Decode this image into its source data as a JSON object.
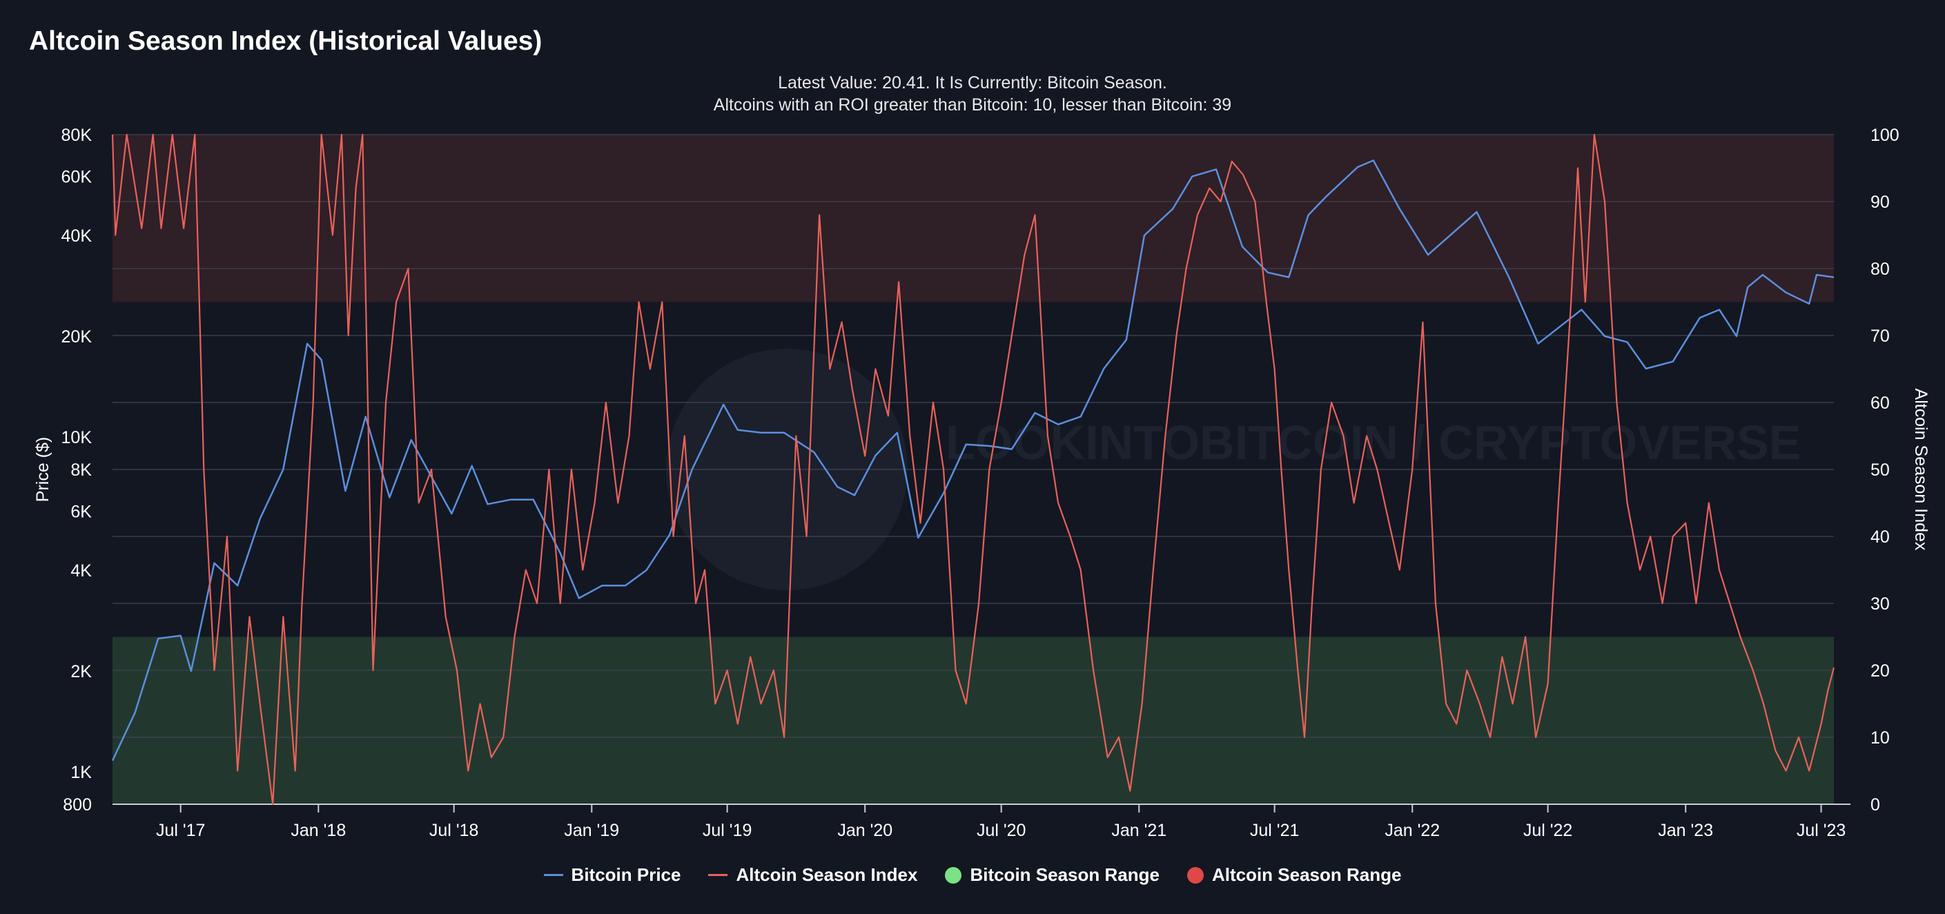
{
  "chart_data": {
    "type": "line",
    "title": "Altcoin Season Index (Historical Values)",
    "subtitle_line1": "Latest Value: 20.41. It Is Currently: Bitcoin Season.",
    "subtitle_line2": "Altcoins with an ROI greater than Bitcoin: 10, lesser than Bitcoin: 39",
    "watermark": "LOOKINTOBITCOIN / CRYPTOVERSE",
    "x_ticks": [
      {
        "label": "Jul '17",
        "date": "2017-07-01"
      },
      {
        "label": "Jan '18",
        "date": "2018-01-01"
      },
      {
        "label": "Jul '18",
        "date": "2018-07-01"
      },
      {
        "label": "Jan '19",
        "date": "2019-01-01"
      },
      {
        "label": "Jul '19",
        "date": "2019-07-01"
      },
      {
        "label": "Jan '20",
        "date": "2020-01-01"
      },
      {
        "label": "Jul '20",
        "date": "2020-07-01"
      },
      {
        "label": "Jan '21",
        "date": "2021-01-01"
      },
      {
        "label": "Jul '21",
        "date": "2021-07-01"
      },
      {
        "label": "Jan '22",
        "date": "2022-01-01"
      },
      {
        "label": "Jul '22",
        "date": "2022-07-01"
      },
      {
        "label": "Jan '23",
        "date": "2023-01-01"
      },
      {
        "label": "Jul '23",
        "date": "2023-07-01"
      }
    ],
    "x_range": [
      "2017-04-01",
      "2023-07-18"
    ],
    "y_left": {
      "label": "Price ($)",
      "scale": "log",
      "range": [
        800,
        80000
      ],
      "ticks": [
        {
          "label": "800",
          "value": 800
        },
        {
          "label": "1K",
          "value": 1000
        },
        {
          "label": "2K",
          "value": 2000
        },
        {
          "label": "4K",
          "value": 4000
        },
        {
          "label": "6K",
          "value": 6000
        },
        {
          "label": "8K",
          "value": 8000
        },
        {
          "label": "10K",
          "value": 10000
        },
        {
          "label": "20K",
          "value": 20000
        },
        {
          "label": "40K",
          "value": 40000
        },
        {
          "label": "60K",
          "value": 60000
        },
        {
          "label": "80K",
          "value": 80000
        }
      ]
    },
    "y_right": {
      "label": "Altcoin Season Index",
      "range": [
        0,
        100
      ],
      "ticks": [
        0,
        10,
        20,
        30,
        40,
        50,
        60,
        70,
        80,
        90,
        100
      ]
    },
    "bands": [
      {
        "name": "Bitcoin Season Range",
        "from": 0,
        "to": 25,
        "color": "#22382f"
      },
      {
        "name": "Altcoin Season Range",
        "from": 75,
        "to": 100,
        "color": "#2f1f27"
      }
    ],
    "series": [
      {
        "name": "Bitcoin Price",
        "color": "#5b8fdd",
        "axis": "left",
        "points": [
          [
            "2017-04-01",
            1080
          ],
          [
            "2017-05-01",
            1500
          ],
          [
            "2017-06-01",
            2500
          ],
          [
            "2017-07-01",
            2550
          ],
          [
            "2017-07-15",
            2000
          ],
          [
            "2017-08-15",
            4200
          ],
          [
            "2017-09-15",
            3600
          ],
          [
            "2017-10-15",
            5700
          ],
          [
            "2017-11-15",
            8000
          ],
          [
            "2017-12-17",
            19000
          ],
          [
            "2018-01-05",
            17000
          ],
          [
            "2018-02-06",
            6900
          ],
          [
            "2018-03-05",
            11500
          ],
          [
            "2018-04-06",
            6600
          ],
          [
            "2018-05-05",
            9800
          ],
          [
            "2018-06-28",
            5900
          ],
          [
            "2018-07-25",
            8200
          ],
          [
            "2018-08-15",
            6300
          ],
          [
            "2018-09-15",
            6500
          ],
          [
            "2018-10-15",
            6500
          ],
          [
            "2018-11-20",
            4500
          ],
          [
            "2018-12-15",
            3300
          ],
          [
            "2019-01-15",
            3600
          ],
          [
            "2019-02-15",
            3600
          ],
          [
            "2019-03-15",
            4000
          ],
          [
            "2019-04-15",
            5100
          ],
          [
            "2019-05-15",
            8000
          ],
          [
            "2019-06-26",
            12500
          ],
          [
            "2019-07-15",
            10500
          ],
          [
            "2019-08-15",
            10300
          ],
          [
            "2019-09-15",
            10300
          ],
          [
            "2019-10-25",
            9000
          ],
          [
            "2019-11-25",
            7100
          ],
          [
            "2019-12-18",
            6700
          ],
          [
            "2020-01-15",
            8800
          ],
          [
            "2020-02-13",
            10300
          ],
          [
            "2020-03-12",
            5000
          ],
          [
            "2020-04-15",
            6800
          ],
          [
            "2020-05-15",
            9500
          ],
          [
            "2020-06-15",
            9400
          ],
          [
            "2020-07-15",
            9200
          ],
          [
            "2020-08-15",
            11800
          ],
          [
            "2020-09-15",
            10900
          ],
          [
            "2020-10-15",
            11500
          ],
          [
            "2020-11-15",
            16000
          ],
          [
            "2020-12-15",
            19500
          ],
          [
            "2021-01-08",
            40000
          ],
          [
            "2021-02-15",
            48000
          ],
          [
            "2021-03-13",
            60000
          ],
          [
            "2021-04-14",
            63000
          ],
          [
            "2021-05-19",
            37000
          ],
          [
            "2021-06-22",
            31000
          ],
          [
            "2021-07-20",
            30000
          ],
          [
            "2021-08-15",
            46000
          ],
          [
            "2021-09-07",
            52000
          ],
          [
            "2021-10-20",
            64000
          ],
          [
            "2021-11-10",
            67000
          ],
          [
            "2021-12-15",
            48000
          ],
          [
            "2022-01-22",
            35000
          ],
          [
            "2022-03-28",
            47000
          ],
          [
            "2022-05-10",
            30000
          ],
          [
            "2022-06-18",
            19000
          ],
          [
            "2022-08-15",
            24000
          ],
          [
            "2022-09-15",
            20000
          ],
          [
            "2022-10-15",
            19200
          ],
          [
            "2022-11-09",
            16000
          ],
          [
            "2022-12-15",
            16800
          ],
          [
            "2023-01-20",
            22700
          ],
          [
            "2023-02-15",
            24000
          ],
          [
            "2023-03-10",
            20000
          ],
          [
            "2023-03-25",
            28000
          ],
          [
            "2023-04-14",
            30500
          ],
          [
            "2023-05-15",
            27000
          ],
          [
            "2023-06-15",
            25000
          ],
          [
            "2023-06-25",
            30500
          ],
          [
            "2023-07-18",
            30000
          ]
        ]
      },
      {
        "name": "Altcoin Season Index",
        "color": "#e8625a",
        "axis": "right",
        "points": [
          [
            "2017-04-01",
            100
          ],
          [
            "2017-04-05",
            85
          ],
          [
            "2017-04-20",
            100
          ],
          [
            "2017-05-10",
            86
          ],
          [
            "2017-05-25",
            100
          ],
          [
            "2017-06-05",
            86
          ],
          [
            "2017-06-20",
            100
          ],
          [
            "2017-07-05",
            86
          ],
          [
            "2017-07-20",
            100
          ],
          [
            "2017-08-01",
            50
          ],
          [
            "2017-08-15",
            20
          ],
          [
            "2017-09-01",
            40
          ],
          [
            "2017-09-15",
            5
          ],
          [
            "2017-10-01",
            28
          ],
          [
            "2017-10-15",
            15
          ],
          [
            "2017-11-01",
            0
          ],
          [
            "2017-11-15",
            28
          ],
          [
            "2017-12-01",
            5
          ],
          [
            "2017-12-10",
            30
          ],
          [
            "2017-12-25",
            60
          ],
          [
            "2018-01-05",
            100
          ],
          [
            "2018-01-20",
            85
          ],
          [
            "2018-02-01",
            100
          ],
          [
            "2018-02-10",
            70
          ],
          [
            "2018-02-20",
            92
          ],
          [
            "2018-03-01",
            100
          ],
          [
            "2018-03-15",
            20
          ],
          [
            "2018-04-01",
            60
          ],
          [
            "2018-04-15",
            75
          ],
          [
            "2018-05-01",
            80
          ],
          [
            "2018-05-15",
            45
          ],
          [
            "2018-06-01",
            50
          ],
          [
            "2018-06-20",
            28
          ],
          [
            "2018-07-05",
            20
          ],
          [
            "2018-07-20",
            5
          ],
          [
            "2018-08-05",
            15
          ],
          [
            "2018-08-20",
            7
          ],
          [
            "2018-09-05",
            10
          ],
          [
            "2018-09-20",
            25
          ],
          [
            "2018-10-05",
            35
          ],
          [
            "2018-10-20",
            30
          ],
          [
            "2018-11-05",
            50
          ],
          [
            "2018-11-20",
            30
          ],
          [
            "2018-12-05",
            50
          ],
          [
            "2018-12-20",
            35
          ],
          [
            "2019-01-05",
            45
          ],
          [
            "2019-01-20",
            60
          ],
          [
            "2019-02-05",
            45
          ],
          [
            "2019-02-20",
            55
          ],
          [
            "2019-03-05",
            75
          ],
          [
            "2019-03-20",
            65
          ],
          [
            "2019-04-05",
            75
          ],
          [
            "2019-04-20",
            40
          ],
          [
            "2019-05-05",
            55
          ],
          [
            "2019-05-20",
            30
          ],
          [
            "2019-06-01",
            35
          ],
          [
            "2019-06-15",
            15
          ],
          [
            "2019-07-01",
            20
          ],
          [
            "2019-07-15",
            12
          ],
          [
            "2019-08-01",
            22
          ],
          [
            "2019-08-15",
            15
          ],
          [
            "2019-09-01",
            20
          ],
          [
            "2019-09-15",
            10
          ],
          [
            "2019-10-01",
            55
          ],
          [
            "2019-10-15",
            40
          ],
          [
            "2019-11-01",
            88
          ],
          [
            "2019-11-15",
            65
          ],
          [
            "2019-12-01",
            72
          ],
          [
            "2019-12-15",
            62
          ],
          [
            "2020-01-01",
            52
          ],
          [
            "2020-01-15",
            65
          ],
          [
            "2020-02-01",
            58
          ],
          [
            "2020-02-15",
            78
          ],
          [
            "2020-03-01",
            55
          ],
          [
            "2020-03-15",
            42
          ],
          [
            "2020-04-01",
            60
          ],
          [
            "2020-04-15",
            50
          ],
          [
            "2020-05-01",
            20
          ],
          [
            "2020-05-15",
            15
          ],
          [
            "2020-06-01",
            30
          ],
          [
            "2020-06-15",
            50
          ],
          [
            "2020-07-01",
            60
          ],
          [
            "2020-07-15",
            70
          ],
          [
            "2020-08-01",
            82
          ],
          [
            "2020-08-15",
            88
          ],
          [
            "2020-09-01",
            55
          ],
          [
            "2020-09-15",
            45
          ],
          [
            "2020-10-01",
            40
          ],
          [
            "2020-10-15",
            35
          ],
          [
            "2020-11-01",
            20
          ],
          [
            "2020-11-20",
            7
          ],
          [
            "2020-12-05",
            10
          ],
          [
            "2020-12-20",
            2
          ],
          [
            "2021-01-05",
            15
          ],
          [
            "2021-01-20",
            35
          ],
          [
            "2021-02-05",
            55
          ],
          [
            "2021-02-20",
            70
          ],
          [
            "2021-03-05",
            80
          ],
          [
            "2021-03-20",
            88
          ],
          [
            "2021-04-05",
            92
          ],
          [
            "2021-04-20",
            90
          ],
          [
            "2021-05-05",
            96
          ],
          [
            "2021-05-20",
            94
          ],
          [
            "2021-06-05",
            90
          ],
          [
            "2021-06-20",
            75
          ],
          [
            "2021-07-01",
            65
          ],
          [
            "2021-07-10",
            50
          ],
          [
            "2021-07-20",
            35
          ],
          [
            "2021-08-01",
            20
          ],
          [
            "2021-08-10",
            10
          ],
          [
            "2021-08-20",
            30
          ],
          [
            "2021-09-01",
            50
          ],
          [
            "2021-09-15",
            60
          ],
          [
            "2021-10-01",
            55
          ],
          [
            "2021-10-15",
            45
          ],
          [
            "2021-11-01",
            55
          ],
          [
            "2021-11-15",
            50
          ],
          [
            "2021-12-01",
            42
          ],
          [
            "2021-12-15",
            35
          ],
          [
            "2022-01-01",
            50
          ],
          [
            "2022-01-15",
            72
          ],
          [
            "2022-02-01",
            30
          ],
          [
            "2022-02-15",
            15
          ],
          [
            "2022-03-01",
            12
          ],
          [
            "2022-03-15",
            20
          ],
          [
            "2022-04-01",
            15
          ],
          [
            "2022-04-15",
            10
          ],
          [
            "2022-05-01",
            22
          ],
          [
            "2022-05-15",
            15
          ],
          [
            "2022-06-01",
            25
          ],
          [
            "2022-06-15",
            10
          ],
          [
            "2022-07-01",
            18
          ],
          [
            "2022-07-15",
            45
          ],
          [
            "2022-08-01",
            75
          ],
          [
            "2022-08-10",
            95
          ],
          [
            "2022-08-20",
            75
          ],
          [
            "2022-09-01",
            100
          ],
          [
            "2022-09-15",
            90
          ],
          [
            "2022-10-01",
            60
          ],
          [
            "2022-10-15",
            45
          ],
          [
            "2022-11-01",
            35
          ],
          [
            "2022-11-15",
            40
          ],
          [
            "2022-12-01",
            30
          ],
          [
            "2022-12-15",
            40
          ],
          [
            "2023-01-01",
            42
          ],
          [
            "2023-01-15",
            30
          ],
          [
            "2023-02-01",
            45
          ],
          [
            "2023-02-15",
            35
          ],
          [
            "2023-03-01",
            30
          ],
          [
            "2023-03-15",
            25
          ],
          [
            "2023-04-01",
            20
          ],
          [
            "2023-04-15",
            15
          ],
          [
            "2023-05-01",
            8
          ],
          [
            "2023-05-15",
            5
          ],
          [
            "2023-06-01",
            10
          ],
          [
            "2023-06-15",
            5
          ],
          [
            "2023-07-01",
            12
          ],
          [
            "2023-07-10",
            17
          ],
          [
            "2023-07-18",
            20.41
          ]
        ]
      }
    ],
    "legend": [
      {
        "label": "Bitcoin Price",
        "kind": "line",
        "color": "#5b8fdd"
      },
      {
        "label": "Altcoin Season Index",
        "kind": "line",
        "color": "#e8625a"
      },
      {
        "label": "Bitcoin Season Range",
        "kind": "dot",
        "color": "#7be385"
      },
      {
        "label": "Altcoin Season Range",
        "kind": "dot",
        "color": "#e04848"
      }
    ]
  }
}
